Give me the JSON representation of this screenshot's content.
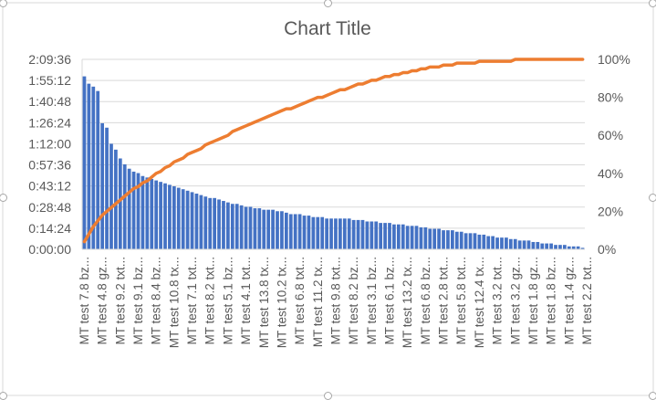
{
  "chart_data": {
    "type": "bar",
    "title": "Chart Title",
    "xlabel": "",
    "ylabel": "",
    "ylim_primary": [
      "0:00:00",
      "2:09:36"
    ],
    "ylim_secondary": [
      0,
      100
    ],
    "grid": "horizontal",
    "legend": "none",
    "primary_ticks": [
      "0:00:00",
      "0:14:24",
      "0:28:48",
      "0:43:12",
      "0:57:36",
      "1:12:00",
      "1:26:24",
      "1:40:48",
      "1:55:12",
      "2:09:36"
    ],
    "secondary_ticks": [
      "0%",
      "20%",
      "40%",
      "60%",
      "80%",
      "100%"
    ],
    "category_labels_visible": [
      "MT test 7.8 bz...",
      "MT test 4.8 gz...",
      "MT test 9.2 txt...",
      "MT test 9.1 bz...",
      "MT test 8.4 bz...",
      "MT test 10.8 tx...",
      "MT test 7.1 txt...",
      "MT test 8.2 txt...",
      "MT test 5.1 bz...",
      "MT test 4.1 txt...",
      "MT test 13.8 tx...",
      "MT test 10.2 tx...",
      "MT test 6.8 txt...",
      "MT test 11.2 tx...",
      "MT test 9.8 txt...",
      "MT test 8.2 bz...",
      "MT test 3.1 bz...",
      "MT test 6.1 bz...",
      "MT test 13.2 tx...",
      "MT test 6.8 bz...",
      "MT test 2.8 txt...",
      "MT test 5.8 txt...",
      "MT test 12.4 tx...",
      "MT test 3.2 txt...",
      "MT test 3.2 gz...",
      "MT test 1.8 gz...",
      "MT test 1.8 bz...",
      "MT test 1.4 gz...",
      "MT test 2.2 txt..."
    ],
    "label_every": 4,
    "series": [
      {
        "kind": "bar",
        "axis": "primary",
        "unit": "minutes",
        "color": "#4472C4",
        "values": [
          118,
          113,
          111,
          108,
          86,
          83,
          72,
          68,
          62,
          58,
          55,
          53,
          52,
          50,
          49,
          48,
          47,
          46,
          45,
          44,
          43,
          42,
          41,
          40,
          39,
          38,
          37,
          36,
          35,
          35,
          34,
          33,
          32,
          31,
          31,
          30,
          29,
          29,
          28,
          28,
          27,
          27,
          27,
          26,
          26,
          25,
          24,
          24,
          24,
          23,
          23,
          22,
          22,
          22,
          21,
          21,
          21,
          21,
          21,
          21,
          20,
          20,
          20,
          19,
          19,
          19,
          18,
          18,
          18,
          17,
          17,
          17,
          16,
          16,
          16,
          15,
          15,
          14,
          14,
          14,
          13,
          13,
          13,
          12,
          12,
          11,
          11,
          11,
          10,
          10,
          9,
          9,
          8,
          8,
          8,
          7,
          7,
          6,
          6,
          6,
          5,
          5,
          4,
          4,
          4,
          3,
          3,
          3,
          2,
          2,
          2,
          1
        ]
      },
      {
        "kind": "line",
        "axis": "secondary",
        "unit": "percent",
        "color": "#ED7D31",
        "values": [
          4,
          8,
          12,
          15,
          18,
          20,
          22,
          24,
          26,
          28,
          30,
          32,
          33,
          35,
          36,
          38,
          40,
          41,
          43,
          44,
          46,
          47,
          48,
          50,
          51,
          52,
          53,
          55,
          56,
          57,
          58,
          59,
          60,
          62,
          63,
          64,
          65,
          66,
          67,
          68,
          69,
          70,
          71,
          72,
          73,
          74,
          74,
          75,
          76,
          77,
          78,
          79,
          80,
          80,
          81,
          82,
          83,
          84,
          84,
          85,
          86,
          87,
          87,
          88,
          89,
          89,
          90,
          91,
          91,
          92,
          92,
          93,
          93,
          94,
          94,
          95,
          95,
          96,
          96,
          96,
          97,
          97,
          97,
          98,
          98,
          98,
          98,
          98,
          99,
          99,
          99,
          99,
          99,
          99,
          99,
          99,
          100,
          100,
          100,
          100,
          100,
          100,
          100,
          100,
          100,
          100,
          100,
          100,
          100,
          100,
          100,
          100
        ]
      }
    ]
  },
  "colors": {
    "bar": "#4472C4",
    "line": "#ED7D31",
    "grid": "#d9d9d9",
    "text": "#595959",
    "frame": "#d9d9d9"
  }
}
